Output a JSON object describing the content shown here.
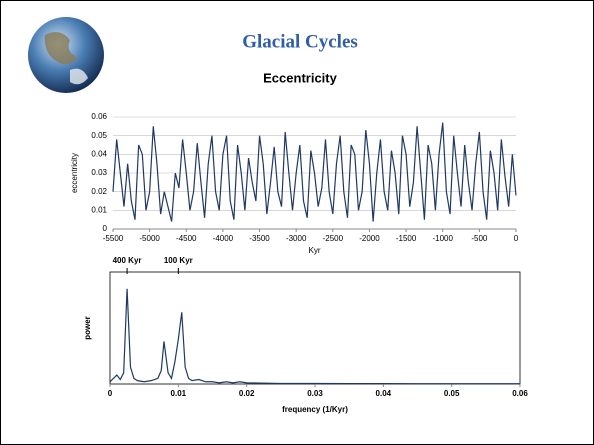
{
  "header": {
    "title": "Glacial Cycles",
    "subtitle": "Eccentricity"
  },
  "chart_data": [
    {
      "type": "line",
      "x_label": "Kyr",
      "y_label": "eccentricity",
      "x": [
        -5500,
        -5450,
        -5400,
        -5350,
        -5300,
        -5250,
        -5200,
        -5150,
        -5100,
        -5050,
        -5000,
        -4950,
        -4900,
        -4850,
        -4800,
        -4750,
        -4700,
        -4650,
        -4600,
        -4550,
        -4500,
        -4450,
        -4400,
        -4350,
        -4300,
        -4250,
        -4200,
        -4150,
        -4100,
        -4050,
        -4000,
        -3950,
        -3900,
        -3850,
        -3800,
        -3750,
        -3700,
        -3650,
        -3600,
        -3550,
        -3500,
        -3450,
        -3400,
        -3350,
        -3300,
        -3250,
        -3200,
        -3150,
        -3100,
        -3050,
        -3000,
        -2950,
        -2900,
        -2850,
        -2800,
        -2750,
        -2700,
        -2650,
        -2600,
        -2550,
        -2500,
        -2450,
        -2400,
        -2350,
        -2300,
        -2250,
        -2200,
        -2150,
        -2100,
        -2050,
        -2000,
        -1950,
        -1900,
        -1850,
        -1800,
        -1750,
        -1700,
        -1650,
        -1600,
        -1550,
        -1500,
        -1450,
        -1400,
        -1350,
        -1300,
        -1250,
        -1200,
        -1150,
        -1100,
        -1050,
        -1000,
        -950,
        -900,
        -850,
        -800,
        -750,
        -700,
        -650,
        -600,
        -550,
        -500,
        -450,
        -400,
        -350,
        -300,
        -250,
        -200,
        -150,
        -100,
        -50,
        0
      ],
      "series": [
        {
          "name": "eccentricity",
          "color": "#1f3864",
          "values": [
            0.02,
            0.048,
            0.03,
            0.012,
            0.035,
            0.015,
            0.005,
            0.045,
            0.04,
            0.01,
            0.02,
            0.055,
            0.035,
            0.008,
            0.02,
            0.012,
            0.004,
            0.03,
            0.022,
            0.048,
            0.03,
            0.01,
            0.02,
            0.046,
            0.025,
            0.006,
            0.035,
            0.05,
            0.02,
            0.01,
            0.04,
            0.05,
            0.015,
            0.005,
            0.045,
            0.03,
            0.01,
            0.038,
            0.025,
            0.015,
            0.05,
            0.035,
            0.008,
            0.025,
            0.044,
            0.02,
            0.012,
            0.052,
            0.03,
            0.01,
            0.03,
            0.045,
            0.015,
            0.006,
            0.042,
            0.03,
            0.012,
            0.022,
            0.048,
            0.02,
            0.008,
            0.035,
            0.05,
            0.02,
            0.006,
            0.045,
            0.04,
            0.01,
            0.02,
            0.053,
            0.035,
            0.004,
            0.03,
            0.048,
            0.02,
            0.01,
            0.042,
            0.03,
            0.008,
            0.05,
            0.04,
            0.012,
            0.025,
            0.055,
            0.03,
            0.005,
            0.045,
            0.035,
            0.01,
            0.04,
            0.057,
            0.02,
            0.008,
            0.05,
            0.03,
            0.012,
            0.045,
            0.025,
            0.01,
            0.035,
            0.052,
            0.02,
            0.005,
            0.042,
            0.03,
            0.01,
            0.048,
            0.028,
            0.012,
            0.04,
            0.018
          ]
        }
      ],
      "xlim": [
        -5500,
        0
      ],
      "xticks": [
        -5500,
        -5000,
        -4500,
        -4000,
        -3500,
        -3000,
        -2500,
        -2000,
        -1500,
        -1000,
        -500,
        0
      ],
      "ylim": [
        0,
        0.06
      ],
      "yticks": [
        0,
        0.01,
        0.02,
        0.03,
        0.04,
        0.05,
        0.06
      ],
      "grid": true
    },
    {
      "type": "line",
      "x_label": "frequency (1/Kyr)",
      "y_label": "power",
      "annotations": [
        {
          "text": "400 Kyr",
          "x": 0.0025
        },
        {
          "text": "100 Kyr",
          "x": 0.01
        }
      ],
      "x": [
        0,
        0.0005,
        0.001,
        0.0015,
        0.002,
        0.0025,
        0.003,
        0.0035,
        0.004,
        0.005,
        0.006,
        0.007,
        0.0075,
        0.0079,
        0.0085,
        0.009,
        0.0095,
        0.01,
        0.0105,
        0.011,
        0.0115,
        0.012,
        0.013,
        0.014,
        0.015,
        0.016,
        0.017,
        0.018,
        0.019,
        0.02,
        0.025,
        0.03,
        0.035,
        0.04,
        0.045,
        0.05,
        0.055,
        0.06
      ],
      "series": [
        {
          "name": "power",
          "color": "#1f3864",
          "values": [
            0.02,
            0.05,
            0.08,
            0.04,
            0.1,
            0.85,
            0.15,
            0.05,
            0.03,
            0.02,
            0.03,
            0.05,
            0.12,
            0.38,
            0.1,
            0.05,
            0.2,
            0.4,
            0.64,
            0.15,
            0.05,
            0.03,
            0.04,
            0.02,
            0.02,
            0.01,
            0.02,
            0.01,
            0.02,
            0.01,
            0.005,
            0.005,
            0.003,
            0.003,
            0.002,
            0.002,
            0.002,
            0.002
          ]
        }
      ],
      "xlim": [
        0,
        0.06
      ],
      "xticks": [
        0,
        0.01,
        0.02,
        0.03,
        0.04,
        0.05,
        0.06
      ],
      "ylim": [
        0,
        1
      ],
      "grid": false
    }
  ]
}
